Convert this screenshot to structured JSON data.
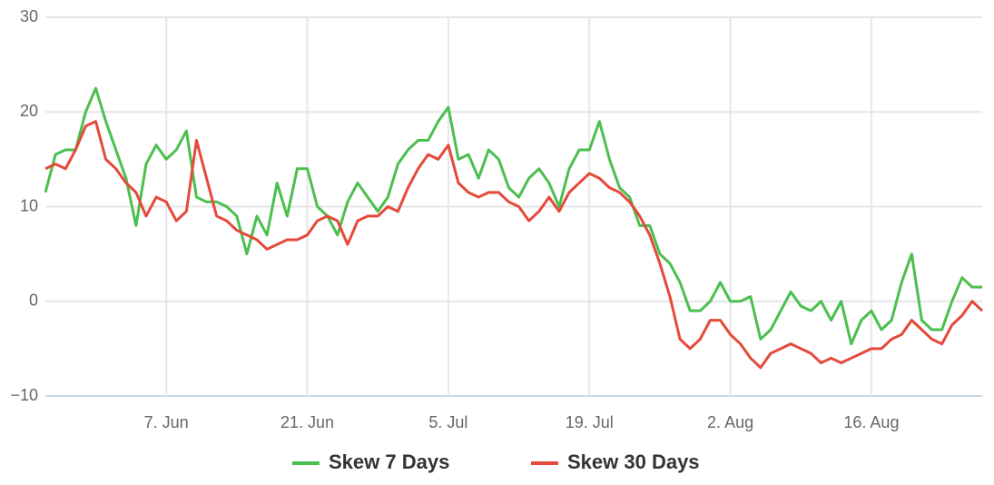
{
  "chart_data": {
    "type": "line",
    "x": [
      "26. May",
      "27. May",
      "28. May",
      "29. May",
      "30. May",
      "31. May",
      "1. Jun",
      "2. Jun",
      "3. Jun",
      "4. Jun",
      "5. Jun",
      "6. Jun",
      "7. Jun",
      "8. Jun",
      "9. Jun",
      "10. Jun",
      "11. Jun",
      "12. Jun",
      "13. Jun",
      "14. Jun",
      "15. Jun",
      "16. Jun",
      "17. Jun",
      "18. Jun",
      "19. Jun",
      "20. Jun",
      "21. Jun",
      "22. Jun",
      "23. Jun",
      "24. Jun",
      "25. Jun",
      "26. Jun",
      "27. Jun",
      "28. Jun",
      "29. Jun",
      "30. Jun",
      "1. Jul",
      "2. Jul",
      "3. Jul",
      "4. Jul",
      "5. Jul",
      "6. Jul",
      "7. Jul",
      "8. Jul",
      "9. Jul",
      "10. Jul",
      "11. Jul",
      "12. Jul",
      "13. Jul",
      "14. Jul",
      "15. Jul",
      "16. Jul",
      "17. Jul",
      "18. Jul",
      "19. Jul",
      "20. Jul",
      "21. Jul",
      "22. Jul",
      "23. Jul",
      "24. Jul",
      "25. Jul",
      "26. Jul",
      "27. Jul",
      "28. Jul",
      "29. Jul",
      "30. Jul",
      "31. Jul",
      "1. Aug",
      "2. Aug",
      "3. Aug",
      "4. Aug",
      "5. Aug",
      "6. Aug",
      "7. Aug",
      "8. Aug",
      "9. Aug",
      "10. Aug",
      "11. Aug",
      "12. Aug",
      "13. Aug",
      "14. Aug",
      "15. Aug",
      "16. Aug",
      "17. Aug",
      "18. Aug",
      "19. Aug",
      "20. Aug",
      "21. Aug",
      "22. Aug",
      "23. Aug",
      "24. Aug",
      "25. Aug",
      "26. Aug",
      "27. Aug"
    ],
    "series": [
      {
        "name": "Skew 7 Days",
        "color": "#4bbf4f",
        "values": [
          11.5,
          15.5,
          16,
          16,
          20,
          22.5,
          19,
          16,
          13,
          8,
          14.5,
          16.5,
          15,
          16,
          18,
          11,
          10.5,
          10.5,
          10,
          9,
          5,
          9,
          7,
          12.5,
          9,
          14,
          14,
          10,
          9,
          7,
          10.5,
          12.5,
          11,
          9.5,
          11,
          14.5,
          16,
          17,
          17,
          19,
          20.5,
          15,
          15.5,
          13,
          16,
          15,
          12,
          11,
          13,
          14,
          12.5,
          10,
          14,
          16,
          16,
          19,
          15,
          12,
          11,
          8,
          8,
          5,
          4,
          2,
          -1,
          -1,
          0,
          2,
          0,
          0,
          0.5,
          -4,
          -3,
          -1,
          1,
          -0.5,
          -1,
          0,
          -2,
          0,
          -4.5,
          -2,
          -1,
          -3,
          -2,
          2,
          5,
          -2,
          -3,
          -3,
          0,
          2.5,
          1.5,
          1.5
        ]
      },
      {
        "name": "Skew 30 Days",
        "color": "#e5493a",
        "values": [
          14,
          14.5,
          14,
          16,
          18.5,
          19,
          15,
          14,
          12.5,
          11.5,
          9,
          11,
          10.5,
          8.5,
          9.5,
          17,
          13,
          9,
          8.5,
          7.5,
          7,
          6.5,
          5.5,
          6,
          6.5,
          6.5,
          7,
          8.5,
          9,
          8.5,
          6,
          8.5,
          9,
          9,
          10,
          9.5,
          12,
          14,
          15.5,
          15,
          16.5,
          12.5,
          11.5,
          11,
          11.5,
          11.5,
          10.5,
          10,
          8.5,
          9.5,
          11,
          9.5,
          11.5,
          12.5,
          13.5,
          13,
          12,
          11.5,
          10.5,
          9,
          7,
          4,
          0.5,
          -4,
          -5,
          -4,
          -2,
          -2,
          -3.5,
          -4.5,
          -6,
          -7,
          -5.5,
          -5,
          -4.5,
          -5,
          -5.5,
          -6.5,
          -6,
          -6.5,
          -6,
          -5.5,
          -5,
          -5,
          -4,
          -3.5,
          -2,
          -3,
          -4,
          -4.5,
          -2.5,
          -1.5,
          0,
          -1
        ]
      }
    ],
    "xticks": [
      "7. Jun",
      "21. Jun",
      "5. Jul",
      "19. Jul",
      "2. Aug",
      "16. Aug"
    ],
    "ylim": [
      -10,
      30
    ],
    "yticks": [
      {
        "value": -10,
        "label": "−10"
      },
      0,
      10,
      20,
      30
    ],
    "grid": true,
    "legend": "bottom"
  }
}
